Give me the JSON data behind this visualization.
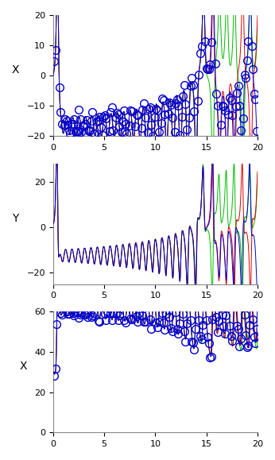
{
  "panel1": {
    "ylabel": "X",
    "ylim": [
      -20,
      20
    ],
    "yticks": [
      -20,
      -10,
      0,
      10,
      20
    ]
  },
  "panel2": {
    "ylabel": "Y",
    "ylim": [
      -25,
      28
    ],
    "yticks": [
      -20,
      0,
      20
    ]
  },
  "panel3": {
    "ylabel": "X",
    "ylim": [
      0,
      60
    ],
    "yticks": [
      0,
      20,
      40,
      60
    ]
  },
  "colors": {
    "red": "#dd0000",
    "green": "#00bb00",
    "blue": "#0000cc",
    "obs_circle": "#0000cc"
  },
  "xticks": [
    0,
    5,
    10,
    15,
    20
  ],
  "xlim": [
    0,
    20
  ],
  "line_width": 0.7,
  "figsize": [
    3.46,
    5.79
  ],
  "dpi": 100,
  "t_max": 20,
  "lorenz_dt": 0.003,
  "obs_interval": 40,
  "obs_markersize": 7
}
